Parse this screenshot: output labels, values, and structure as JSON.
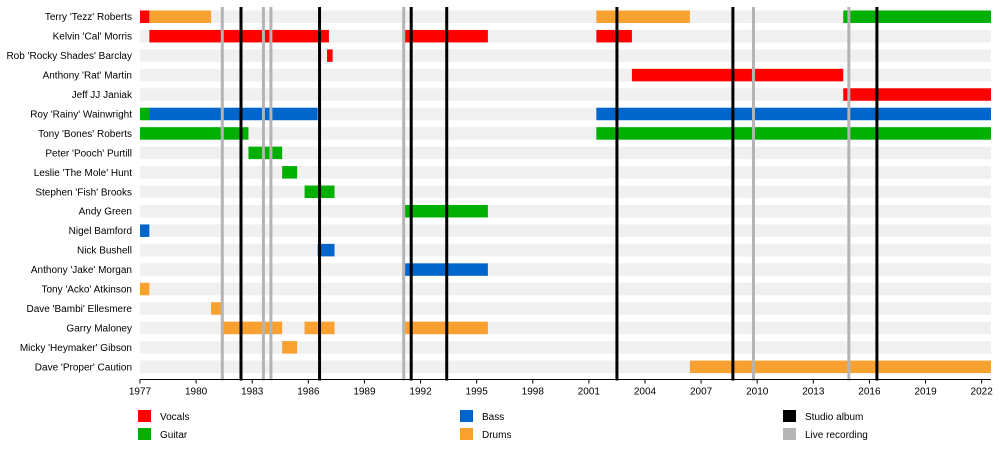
{
  "chart_data": {
    "type": "timeline",
    "title": "",
    "xlim": [
      1977.0,
      2022.5
    ],
    "x_ticks": [
      "1977",
      "1980",
      "1983",
      "1986",
      "1989",
      "1992",
      "1995",
      "1998",
      "2001",
      "2004",
      "2007",
      "2010",
      "2013",
      "2016",
      "2019",
      "2022"
    ],
    "members": [
      "Terry 'Tezz' Roberts",
      "Kelvin 'Cal' Morris",
      "Rob 'Rocky Shades' Barclay",
      "Anthony 'Rat' Martin",
      "Jeff JJ Janiak",
      "Roy 'Rainy' Wainwright",
      "Tony 'Bones' Roberts",
      "Peter 'Pooch' Purtill",
      "Leslie 'The Mole' Hunt",
      "Stephen 'Fish' Brooks",
      "Andy Green",
      "Nigel Bamford",
      "Nick Bushell",
      "Anthony 'Jake' Morgan",
      "Tony 'Acko' Atkinson",
      "Dave 'Bambi' Ellesmere",
      "Garry Maloney",
      "Micky 'Heymaker' Gibson",
      "Dave 'Proper' Caution"
    ],
    "roles": [
      {
        "key": "vocals",
        "name": "Vocals",
        "color": "#ff0000"
      },
      {
        "key": "guitar",
        "name": "Guitar",
        "color": "#00b000"
      },
      {
        "key": "bass",
        "name": "Bass",
        "color": "#0066cc"
      },
      {
        "key": "drums",
        "name": "Drums",
        "color": "#f8a030"
      }
    ],
    "bars": [
      {
        "row": 0,
        "role": "vocals",
        "start": 1977.0,
        "end": 1977.5
      },
      {
        "row": 0,
        "role": "drums",
        "start": 1977.5,
        "end": 1980.8
      },
      {
        "row": 0,
        "role": "drums",
        "start": 2001.4,
        "end": 2006.4
      },
      {
        "row": 0,
        "role": "guitar",
        "start": 2014.6,
        "end": 2022.5
      },
      {
        "row": 1,
        "role": "vocals",
        "start": 1977.5,
        "end": 1987.1
      },
      {
        "row": 1,
        "role": "vocals",
        "start": 1991.1,
        "end": 1995.6
      },
      {
        "row": 1,
        "role": "vocals",
        "start": 2001.4,
        "end": 2003.3
      },
      {
        "row": 2,
        "role": "vocals",
        "start": 1987.0,
        "end": 1987.3
      },
      {
        "row": 3,
        "role": "vocals",
        "start": 2003.3,
        "end": 2014.6
      },
      {
        "row": 4,
        "role": "vocals",
        "start": 2014.6,
        "end": 2022.5
      },
      {
        "row": 5,
        "role": "guitar",
        "start": 1977.0,
        "end": 1977.5
      },
      {
        "row": 5,
        "role": "bass",
        "start": 1977.5,
        "end": 1986.5
      },
      {
        "row": 5,
        "role": "bass",
        "start": 2001.4,
        "end": 2022.5
      },
      {
        "row": 6,
        "role": "guitar",
        "start": 1977.0,
        "end": 1982.8
      },
      {
        "row": 6,
        "role": "guitar",
        "start": 2001.4,
        "end": 2022.5
      },
      {
        "row": 7,
        "role": "guitar",
        "start": 1982.8,
        "end": 1984.6
      },
      {
        "row": 8,
        "role": "guitar",
        "start": 1984.6,
        "end": 1985.4
      },
      {
        "row": 9,
        "role": "guitar",
        "start": 1985.8,
        "end": 1987.4
      },
      {
        "row": 10,
        "role": "guitar",
        "start": 1991.1,
        "end": 1995.6
      },
      {
        "row": 11,
        "role": "bass",
        "start": 1977.0,
        "end": 1977.5
      },
      {
        "row": 12,
        "role": "bass",
        "start": 1986.5,
        "end": 1987.4
      },
      {
        "row": 13,
        "role": "bass",
        "start": 1991.1,
        "end": 1995.6
      },
      {
        "row": 14,
        "role": "drums",
        "start": 1977.0,
        "end": 1977.5
      },
      {
        "row": 15,
        "role": "drums",
        "start": 1980.8,
        "end": 1981.4
      },
      {
        "row": 16,
        "role": "drums",
        "start": 1981.4,
        "end": 1984.6
      },
      {
        "row": 16,
        "role": "drums",
        "start": 1985.8,
        "end": 1987.4
      },
      {
        "row": 16,
        "role": "drums",
        "start": 1991.1,
        "end": 1995.6
      },
      {
        "row": 17,
        "role": "drums",
        "start": 1984.6,
        "end": 1985.4
      },
      {
        "row": 18,
        "role": "drums",
        "start": 2006.4,
        "end": 2022.5
      }
    ],
    "event_types": [
      {
        "key": "studio",
        "name": "Studio album",
        "color": "#000000"
      },
      {
        "key": "live",
        "name": "Live recording",
        "color": "#b4b4b4"
      }
    ],
    "events": [
      {
        "type": "live",
        "x": 1981.4
      },
      {
        "type": "studio",
        "x": 1982.4
      },
      {
        "type": "live",
        "x": 1983.6
      },
      {
        "type": "live",
        "x": 1984.0
      },
      {
        "type": "studio",
        "x": 1986.6
      },
      {
        "type": "live",
        "x": 1991.1
      },
      {
        "type": "studio",
        "x": 1991.5
      },
      {
        "type": "studio",
        "x": 1993.4
      },
      {
        "type": "studio",
        "x": 2002.5
      },
      {
        "type": "studio",
        "x": 2008.7
      },
      {
        "type": "live",
        "x": 2009.8
      },
      {
        "type": "live",
        "x": 2014.9
      },
      {
        "type": "studio",
        "x": 2016.4
      }
    ],
    "legend_placement": "bottom"
  }
}
